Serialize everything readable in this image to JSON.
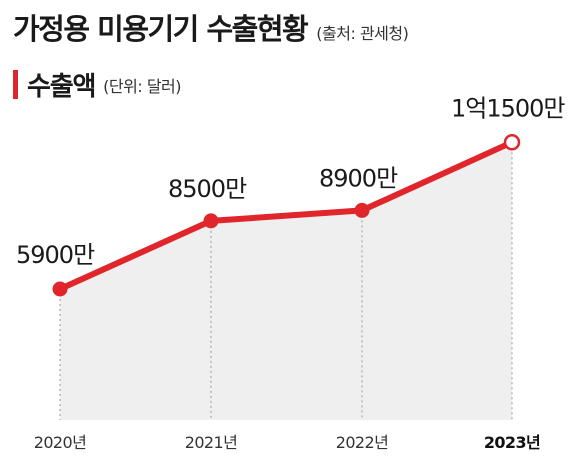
{
  "header": {
    "title": "가정용 미용기기 수출현황",
    "source": "(출처: 관세청)"
  },
  "subheader": {
    "title": "수출액",
    "unit": "(단위: 달러)"
  },
  "colors": {
    "line": "#e0262b",
    "area": "#efefef",
    "grid": "#9a9a9a"
  },
  "chart_data": {
    "type": "line",
    "title": "수출액",
    "unit": "달러",
    "categories": [
      "2020년",
      "2021년",
      "2022년",
      "2023년"
    ],
    "series": [
      {
        "values": [
          59000000,
          85000000,
          89000000,
          115000000
        ],
        "labels": [
          "5900만",
          "8500만",
          "8900만",
          "1억1500만"
        ]
      }
    ],
    "ylim": [
      0,
      130000000
    ],
    "grid": false,
    "area_fill": true,
    "last_point_hollow": true
  }
}
